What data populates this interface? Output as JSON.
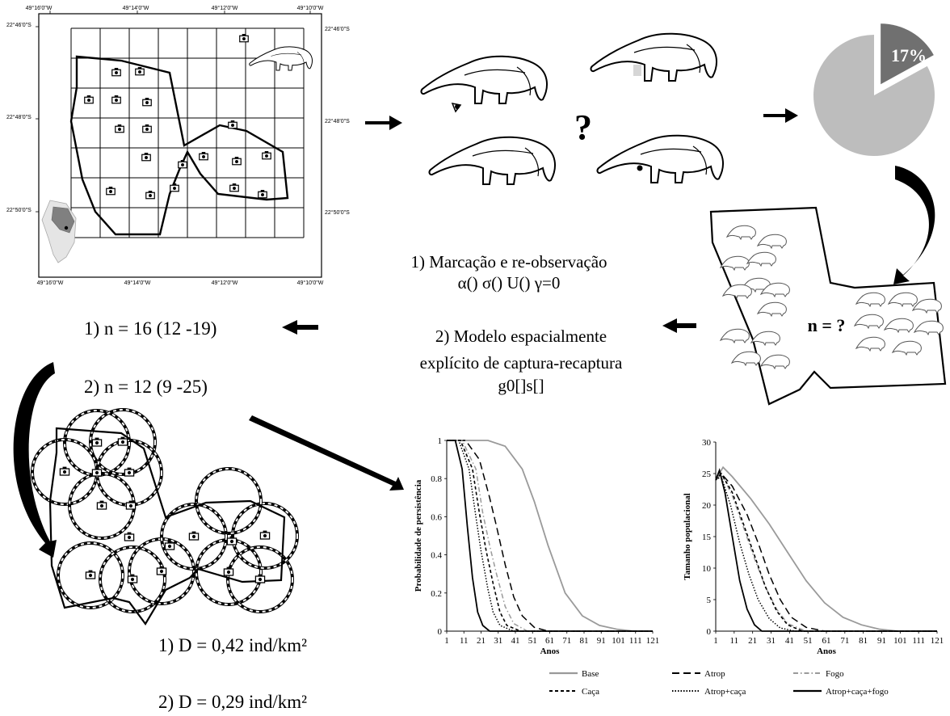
{
  "map": {
    "lon_labels": [
      "49°16'0\"W",
      "49°14'0\"W",
      "49°12'0\"W",
      "49°10'0\"W"
    ],
    "lat_labels": [
      "22°46'0\"S",
      "22°48'0\"S",
      "22°50'0\"S"
    ]
  },
  "question_mark": "?",
  "pie": {
    "label": "17%",
    "fraction": 0.17,
    "colors": {
      "main": "#bdbdbd",
      "slice": "#707070"
    }
  },
  "study_area": {
    "label": "n = ?"
  },
  "methods": {
    "m1_line1": "1) Marcação  e re-observação",
    "m1_line2": "α() σ() U() γ=0",
    "m2_line1": "2) Modelo espacialmente",
    "m2_line2": "explícito de captura-recaptura",
    "m2_line3": "g0[]s[]"
  },
  "abundance": {
    "n1": "1)   n = 16 (12 -19)",
    "n2": "2)   n = 12 (9 -25)"
  },
  "density": {
    "d1": "1)   D = 0,42 ind/km²",
    "d2": "2)   D = 0,29 ind/km²"
  },
  "chart_data": [
    {
      "type": "line",
      "ylabel": "Probabilidade de persistência",
      "xlabel": "Anos",
      "x_ticks": [
        1,
        11,
        21,
        31,
        41,
        51,
        61,
        71,
        81,
        91,
        101,
        111,
        121
      ],
      "y_ticks": [
        0,
        0.2,
        0.4,
        0.6,
        0.8,
        1
      ],
      "xlim": [
        1,
        121
      ],
      "ylim": [
        0,
        1
      ],
      "series": [
        {
          "name": "Base",
          "style": "solid-gray",
          "x": [
            1,
            25,
            35,
            45,
            52,
            60,
            70,
            80,
            90,
            100,
            110,
            121
          ],
          "y": [
            1,
            1,
            0.97,
            0.85,
            0.68,
            0.45,
            0.2,
            0.08,
            0.03,
            0.01,
            0,
            0
          ]
        },
        {
          "name": "Atrop",
          "style": "long-dash",
          "x": [
            1,
            12,
            20,
            26,
            30,
            35,
            40,
            45,
            52,
            60,
            121
          ],
          "y": [
            1,
            1,
            0.9,
            0.7,
            0.55,
            0.35,
            0.18,
            0.08,
            0.02,
            0,
            0
          ]
        },
        {
          "name": "Fogo",
          "style": "dash-dot",
          "x": [
            1,
            10,
            18,
            22,
            26,
            30,
            35,
            40,
            48,
            121
          ],
          "y": [
            1,
            1,
            0.85,
            0.62,
            0.45,
            0.3,
            0.13,
            0.04,
            0,
            0
          ]
        },
        {
          "name": "Caça",
          "style": "short-dash",
          "x": [
            1,
            9,
            16,
            20,
            24,
            28,
            32,
            36,
            44,
            121
          ],
          "y": [
            1,
            1,
            0.85,
            0.62,
            0.42,
            0.25,
            0.1,
            0.03,
            0,
            0
          ]
        },
        {
          "name": "Atrop+caça",
          "style": "dotted",
          "x": [
            1,
            8,
            14,
            18,
            21,
            25,
            28,
            32,
            40,
            121
          ],
          "y": [
            1,
            1,
            0.85,
            0.6,
            0.42,
            0.22,
            0.1,
            0.03,
            0,
            0
          ]
        },
        {
          "name": "Atrop+caça+fogo",
          "style": "solid-black",
          "x": [
            1,
            6,
            10,
            13,
            16,
            19,
            22,
            26,
            121
          ],
          "y": [
            1,
            1,
            0.85,
            0.55,
            0.28,
            0.1,
            0.03,
            0,
            0
          ]
        }
      ]
    },
    {
      "type": "line",
      "ylabel": "Tamanho  populacional",
      "xlabel": "Anos",
      "x_ticks": [
        1,
        11,
        21,
        31,
        41,
        51,
        61,
        71,
        81,
        91,
        101,
        111,
        121
      ],
      "y_ticks": [
        0,
        5,
        10,
        15,
        20,
        25,
        30
      ],
      "xlim": [
        1,
        121
      ],
      "ylim": [
        0,
        30
      ],
      "series": [
        {
          "name": "Base",
          "style": "solid-gray",
          "x": [
            1,
            5,
            10,
            20,
            30,
            40,
            50,
            60,
            70,
            80,
            90,
            100,
            121
          ],
          "y": [
            24,
            26,
            24.5,
            21,
            17,
            12.5,
            8,
            4.5,
            2.2,
            1,
            0.3,
            0,
            0
          ]
        },
        {
          "name": "Atrop",
          "style": "long-dash",
          "x": [
            1,
            4,
            10,
            18,
            24,
            30,
            36,
            42,
            50,
            60,
            121
          ],
          "y": [
            24,
            25,
            23,
            18.5,
            14,
            9,
            5,
            2.2,
            0.6,
            0,
            0
          ]
        },
        {
          "name": "Fogo",
          "style": "dash-dot",
          "x": [
            1,
            4,
            10,
            16,
            22,
            28,
            34,
            40,
            50,
            121
          ],
          "y": [
            24,
            25,
            21.5,
            16.5,
            11.5,
            7,
            3.5,
            1.2,
            0,
            0
          ]
        },
        {
          "name": "Caça",
          "style": "short-dash",
          "x": [
            1,
            4,
            10,
            16,
            22,
            28,
            34,
            40,
            48,
            121
          ],
          "y": [
            24,
            25,
            22,
            17,
            12,
            7,
            3.2,
            1,
            0,
            0
          ]
        },
        {
          "name": "Atrop+caça",
          "style": "dotted",
          "x": [
            1,
            4,
            9,
            14,
            19,
            24,
            30,
            36,
            44,
            121
          ],
          "y": [
            24,
            24.5,
            20,
            14,
            9,
            5,
            2,
            0.5,
            0,
            0
          ]
        },
        {
          "name": "Atrop+caça+fogo",
          "style": "solid-black",
          "x": [
            1,
            3,
            6,
            10,
            14,
            18,
            22,
            26,
            121
          ],
          "y": [
            24,
            25.5,
            22,
            15,
            8,
            3.5,
            1,
            0,
            0
          ]
        }
      ]
    }
  ],
  "legend": [
    {
      "label": "Base",
      "style": "solid-gray"
    },
    {
      "label": "Atrop",
      "style": "long-dash"
    },
    {
      "label": "Fogo",
      "style": "dash-dot"
    },
    {
      "label": "Caça",
      "style": "short-dash"
    },
    {
      "label": "Atrop+caça",
      "style": "dotted"
    },
    {
      "label": "Atrop+caça+fogo",
      "style": "solid-black"
    }
  ]
}
